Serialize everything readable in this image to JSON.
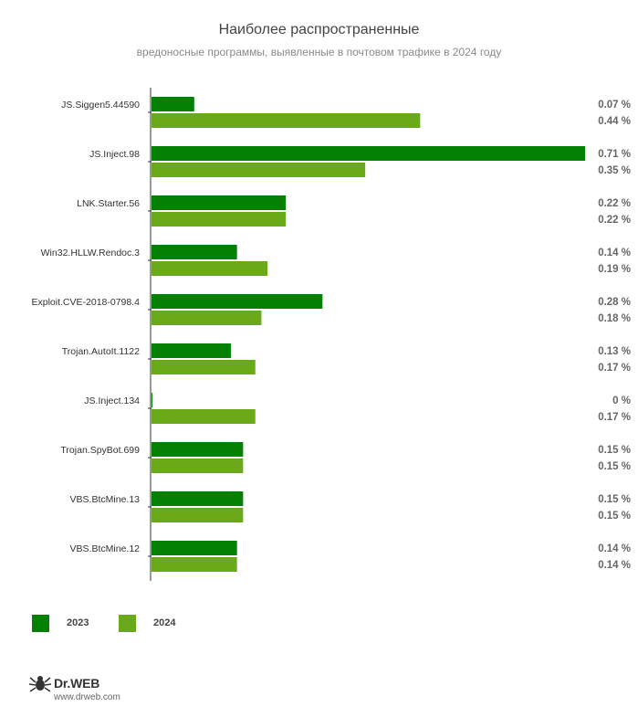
{
  "chart_data": {
    "type": "bar",
    "orientation": "horizontal",
    "title": "Наиболее распространенные",
    "subtitle": "вредоносные программы, выявленные в почтовом трафике в 2024 году",
    "categories": [
      "JS.Siggen5.44590",
      "JS.Inject.98",
      "LNK.Starter.56",
      "Win32.HLLW.Rendoc.3",
      "Exploit.CVE-2018-0798.4",
      "Trojan.AutoIt.1122",
      "JS.Inject.134",
      "Trojan.SpyBot.699",
      "VBS.BtcMine.13",
      "VBS.BtcMine.12"
    ],
    "series": [
      {
        "name": "2023",
        "color": "#048004",
        "values": [
          0.07,
          0.71,
          0.22,
          0.14,
          0.28,
          0.13,
          0,
          0.15,
          0.15,
          0.14
        ],
        "labels": [
          "0.07 %",
          "0.71 %",
          "0.22 %",
          "0.14 %",
          "0.28 %",
          "0.13 %",
          "0 %",
          "0.15 %",
          "0.15 %",
          "0.14 %"
        ]
      },
      {
        "name": "2024",
        "color": "#6aaa1a",
        "values": [
          0.44,
          0.35,
          0.22,
          0.19,
          0.18,
          0.17,
          0.17,
          0.15,
          0.15,
          0.14
        ],
        "labels": [
          "0.44 %",
          "0.35 %",
          "0.22 %",
          "0.19 %",
          "0.18 %",
          "0.17 %",
          "0.17 %",
          "0.15 %",
          "0.15 %",
          "0.14 %"
        ]
      }
    ],
    "xlim": [
      0,
      0.71
    ],
    "legend_position": "bottom-left"
  },
  "legend": {
    "item_2023": "2023",
    "item_2024": "2024"
  },
  "footer": {
    "brand": "Dr.WEB",
    "url": "www.drweb.com"
  }
}
